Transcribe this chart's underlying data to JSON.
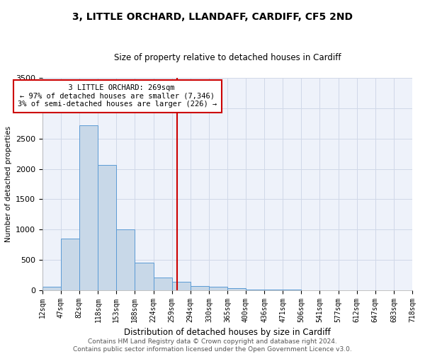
{
  "title": "3, LITTLE ORCHARD, LLANDAFF, CARDIFF, CF5 2ND",
  "subtitle": "Size of property relative to detached houses in Cardiff",
  "xlabel": "Distribution of detached houses by size in Cardiff",
  "ylabel": "Number of detached properties",
  "bins": [
    12,
    47,
    82,
    118,
    153,
    188,
    224,
    259,
    294,
    330,
    365,
    400,
    436,
    471,
    506,
    541,
    577,
    612,
    647,
    683,
    718
  ],
  "values": [
    55,
    850,
    2720,
    2060,
    1000,
    450,
    210,
    135,
    75,
    55,
    40,
    15,
    10,
    8,
    5,
    3,
    2,
    1,
    1,
    1
  ],
  "bar_color": "#c8d8e8",
  "bar_edge_color": "#5b9bd5",
  "property_size": 269,
  "property_label": "3 LITTLE ORCHARD: 269sqm",
  "pct_smaller": "97% of detached houses are smaller (7,346)",
  "pct_larger": "3% of semi-detached houses are larger (226)",
  "vline_color": "#cc0000",
  "annotation_box_edge": "#cc0000",
  "grid_color": "#d0d8e8",
  "background_color": "#eef2fa",
  "footer_line1": "Contains HM Land Registry data © Crown copyright and database right 2024.",
  "footer_line2": "Contains public sector information licensed under the Open Government Licence v3.0.",
  "title_fontsize": 10,
  "subtitle_fontsize": 8.5,
  "xlabel_fontsize": 8.5,
  "ylabel_fontsize": 7.5,
  "tick_fontsize": 7,
  "annotation_fontsize": 7.5,
  "footer_fontsize": 6.5,
  "ylim": [
    0,
    3500
  ]
}
